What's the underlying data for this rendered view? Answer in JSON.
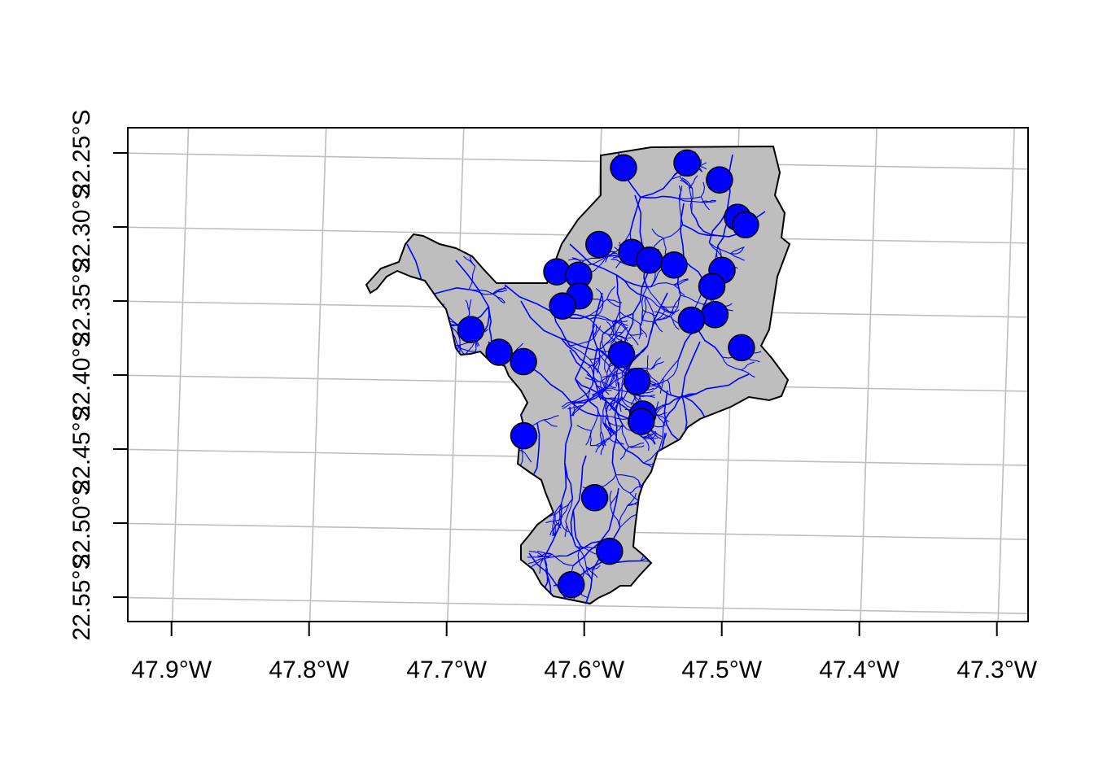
{
  "map": {
    "x_tick_labels": [
      "47.9°W",
      "47.8°W",
      "47.7°W",
      "47.6°W",
      "47.5°W",
      "47.4°W",
      "47.3°W"
    ],
    "x_tick_values": [
      -47.9,
      -47.8,
      -47.7,
      -47.6,
      -47.5,
      -47.4,
      -47.3
    ],
    "y_tick_labels": [
      "22.25°S",
      "22.30°S",
      "22.35°S",
      "22.40°S",
      "22.45°S",
      "22.50°S",
      "22.55°S"
    ],
    "y_tick_values": [
      -22.25,
      -22.3,
      -22.35,
      -22.4,
      -22.45,
      -22.5,
      -22.55
    ],
    "colors": {
      "region_fill": "#bebebe",
      "region_outline": "#000000",
      "rivers": "#0000ff",
      "points_fill": "#0000ff",
      "points_outline": "#000000",
      "graticule": "#bebebe",
      "frame": "#000000"
    },
    "points": [
      {
        "lon": -47.583,
        "lat": -22.254
      },
      {
        "lon": -47.537,
        "lat": -22.25
      },
      {
        "lon": -47.513,
        "lat": -22.261
      },
      {
        "lon": -47.499,
        "lat": -22.286
      },
      {
        "lon": -47.493,
        "lat": -22.291
      },
      {
        "lon": -47.599,
        "lat": -22.306
      },
      {
        "lon": -47.575,
        "lat": -22.311
      },
      {
        "lon": -47.562,
        "lat": -22.316
      },
      {
        "lon": -47.544,
        "lat": -22.319
      },
      {
        "lon": -47.509,
        "lat": -22.322
      },
      {
        "lon": -47.516,
        "lat": -22.333
      },
      {
        "lon": -47.629,
        "lat": -22.325
      },
      {
        "lon": -47.613,
        "lat": -22.327
      },
      {
        "lon": -47.612,
        "lat": -22.341
      },
      {
        "lon": -47.624,
        "lat": -22.348
      },
      {
        "lon": -47.513,
        "lat": -22.352
      },
      {
        "lon": -47.53,
        "lat": -22.356
      },
      {
        "lon": -47.493,
        "lat": -22.374
      },
      {
        "lon": -47.69,
        "lat": -22.365
      },
      {
        "lon": -47.669,
        "lat": -22.38
      },
      {
        "lon": -47.651,
        "lat": -22.386
      },
      {
        "lon": -47.58,
        "lat": -22.38
      },
      {
        "lon": -47.568,
        "lat": -22.398
      },
      {
        "lon": -47.563,
        "lat": -22.42
      },
      {
        "lon": -47.564,
        "lat": -22.425
      },
      {
        "lon": -47.649,
        "lat": -22.436
      },
      {
        "lon": -47.596,
        "lat": -22.477
      },
      {
        "lon": -47.584,
        "lat": -22.513
      },
      {
        "lon": -47.611,
        "lat": -22.536
      }
    ]
  }
}
